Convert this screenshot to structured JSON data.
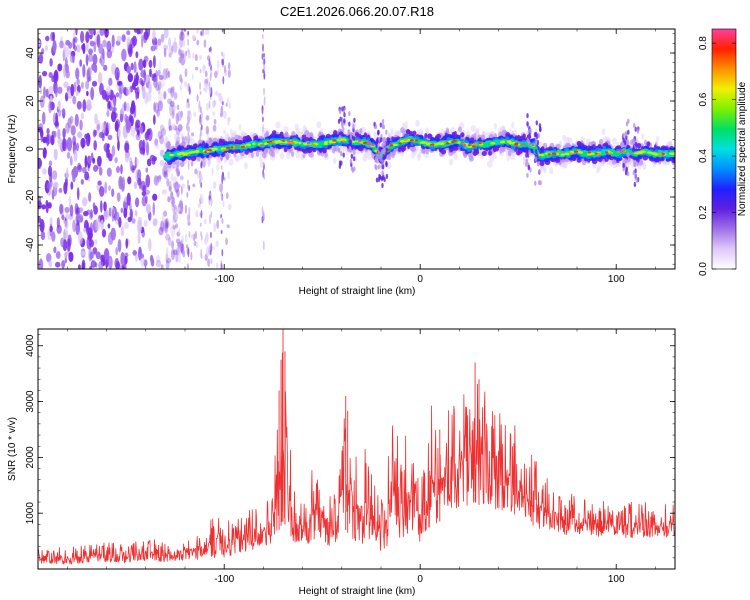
{
  "title": "C2E1.2026.066.20.07.R18",
  "chart_data": [
    {
      "type": "heatmap",
      "title": "C2E1.2026.066.20.07.R18",
      "xlabel": "Height of straight line (km)",
      "ylabel": "Frequency (Hz)",
      "xlim": [
        -195,
        130
      ],
      "ylim": [
        -50,
        50
      ],
      "xticks": [
        -100,
        0,
        100
      ],
      "yticks": [
        -40,
        -20,
        0,
        20,
        40
      ],
      "xtick_labels": [
        "-100",
        "0",
        "100"
      ],
      "ytick_labels": [
        "-40",
        "-20",
        "0",
        "20",
        "40"
      ],
      "noise_region_x": [
        -195,
        -125
      ],
      "noise_streaks_x": [
        -118,
        -112,
        -107,
        -101,
        -80
      ],
      "signal_start_x": -130,
      "ridge": {
        "x": [
          -130,
          -125,
          -120,
          -115,
          -110,
          -105,
          -100,
          -95,
          -90,
          -85,
          -80,
          -75,
          -70,
          -65,
          -60,
          -55,
          -50,
          -45,
          -40,
          -35,
          -30,
          -25,
          -22,
          -20,
          -18,
          -15,
          -10,
          -5,
          0,
          5,
          10,
          15,
          20,
          25,
          30,
          35,
          40,
          45,
          50,
          55,
          58,
          60,
          62,
          65,
          70,
          75,
          80,
          85,
          90,
          95,
          100,
          105,
          110,
          115,
          120,
          125,
          130
        ],
        "frequency": [
          -3,
          -2,
          -2,
          -1,
          -1,
          0,
          0,
          1,
          1,
          2,
          2,
          3,
          3,
          3,
          2,
          2,
          2,
          3,
          4,
          3,
          3,
          2,
          -1,
          -3,
          -1,
          1,
          3,
          4,
          3,
          2,
          2,
          3,
          3,
          1,
          2,
          2,
          3,
          3,
          2,
          2,
          1,
          -2,
          -3,
          -2,
          -2,
          -2,
          -1,
          -2,
          -2,
          -1,
          -2,
          -1,
          -2,
          -1,
          -2,
          -2,
          -2
        ]
      },
      "colorbar": {
        "label": "Normalized spectral amplitude",
        "range": [
          0,
          0.85
        ],
        "ticks": [
          0.0,
          0.2,
          0.4,
          0.6,
          0.8
        ],
        "tick_labels": [
          "0.0",
          "0.2",
          "0.4",
          "0.6",
          "0.8"
        ],
        "colormap": [
          "#ffffff",
          "#e0c8f8",
          "#a070e8",
          "#6020e0",
          "#2020ff",
          "#0090ff",
          "#00e0e0",
          "#00e060",
          "#80f000",
          "#f0f000",
          "#ff9000",
          "#ff2000",
          "#ff40a0"
        ]
      }
    },
    {
      "type": "line",
      "xlabel": "Height of straight line (km)",
      "ylabel": "SNR (10 * v/v)",
      "xlim": [
        -195,
        130
      ],
      "ylim": [
        0,
        4300
      ],
      "xticks": [
        -100,
        0,
        100
      ],
      "yticks": [
        1000,
        2000,
        3000,
        4000
      ],
      "xtick_labels": [
        "-100",
        "0",
        "100"
      ],
      "ytick_labels": [
        "1000",
        "2000",
        "3000",
        "4000"
      ],
      "series_color": "#f03030",
      "envelope": {
        "x": [
          -195,
          -180,
          -170,
          -160,
          -150,
          -140,
          -130,
          -120,
          -110,
          -105,
          -103,
          -100,
          -95,
          -90,
          -85,
          -80,
          -75,
          -72,
          -70,
          -68,
          -65,
          -60,
          -55,
          -50,
          -45,
          -42,
          -40,
          -38,
          -35,
          -33,
          -30,
          -27,
          -25,
          -22,
          -20,
          -18,
          -15,
          -10,
          -5,
          -2,
          0,
          3,
          5,
          8,
          10,
          12,
          15,
          20,
          25,
          28,
          30,
          35,
          40,
          45,
          50,
          55,
          60,
          65,
          70,
          80,
          90,
          100,
          110,
          120,
          130
        ],
        "upper": [
          450,
          400,
          420,
          480,
          450,
          550,
          500,
          580,
          700,
          1000,
          1150,
          850,
          900,
          1000,
          1100,
          1200,
          1500,
          3200,
          4300,
          3500,
          1700,
          1300,
          1800,
          1900,
          1200,
          1700,
          2500,
          3100,
          2300,
          2200,
          2000,
          2400,
          2600,
          1700,
          1300,
          1200,
          2900,
          2500,
          2600,
          2200,
          1700,
          1900,
          3300,
          2800,
          2500,
          2600,
          3100,
          3300,
          3100,
          3700,
          3400,
          3200,
          3300,
          2900,
          2500,
          2300,
          1900,
          1700,
          1500,
          1300,
          1300,
          1200,
          1200,
          1200,
          1250
        ],
        "lower": [
          100,
          80,
          100,
          120,
          100,
          150,
          130,
          150,
          180,
          200,
          250,
          200,
          250,
          300,
          350,
          350,
          450,
          700,
          850,
          750,
          500,
          400,
          450,
          500,
          350,
          450,
          600,
          700,
          550,
          500,
          450,
          500,
          550,
          350,
          250,
          300,
          600,
          550,
          600,
          500,
          450,
          500,
          750,
          800,
          850,
          950,
          1050,
          1100,
          1100,
          1200,
          1150,
          1100,
          1050,
          1000,
          900,
          850,
          700,
          650,
          620,
          600,
          580,
          560,
          560,
          560,
          580
        ]
      }
    }
  ]
}
